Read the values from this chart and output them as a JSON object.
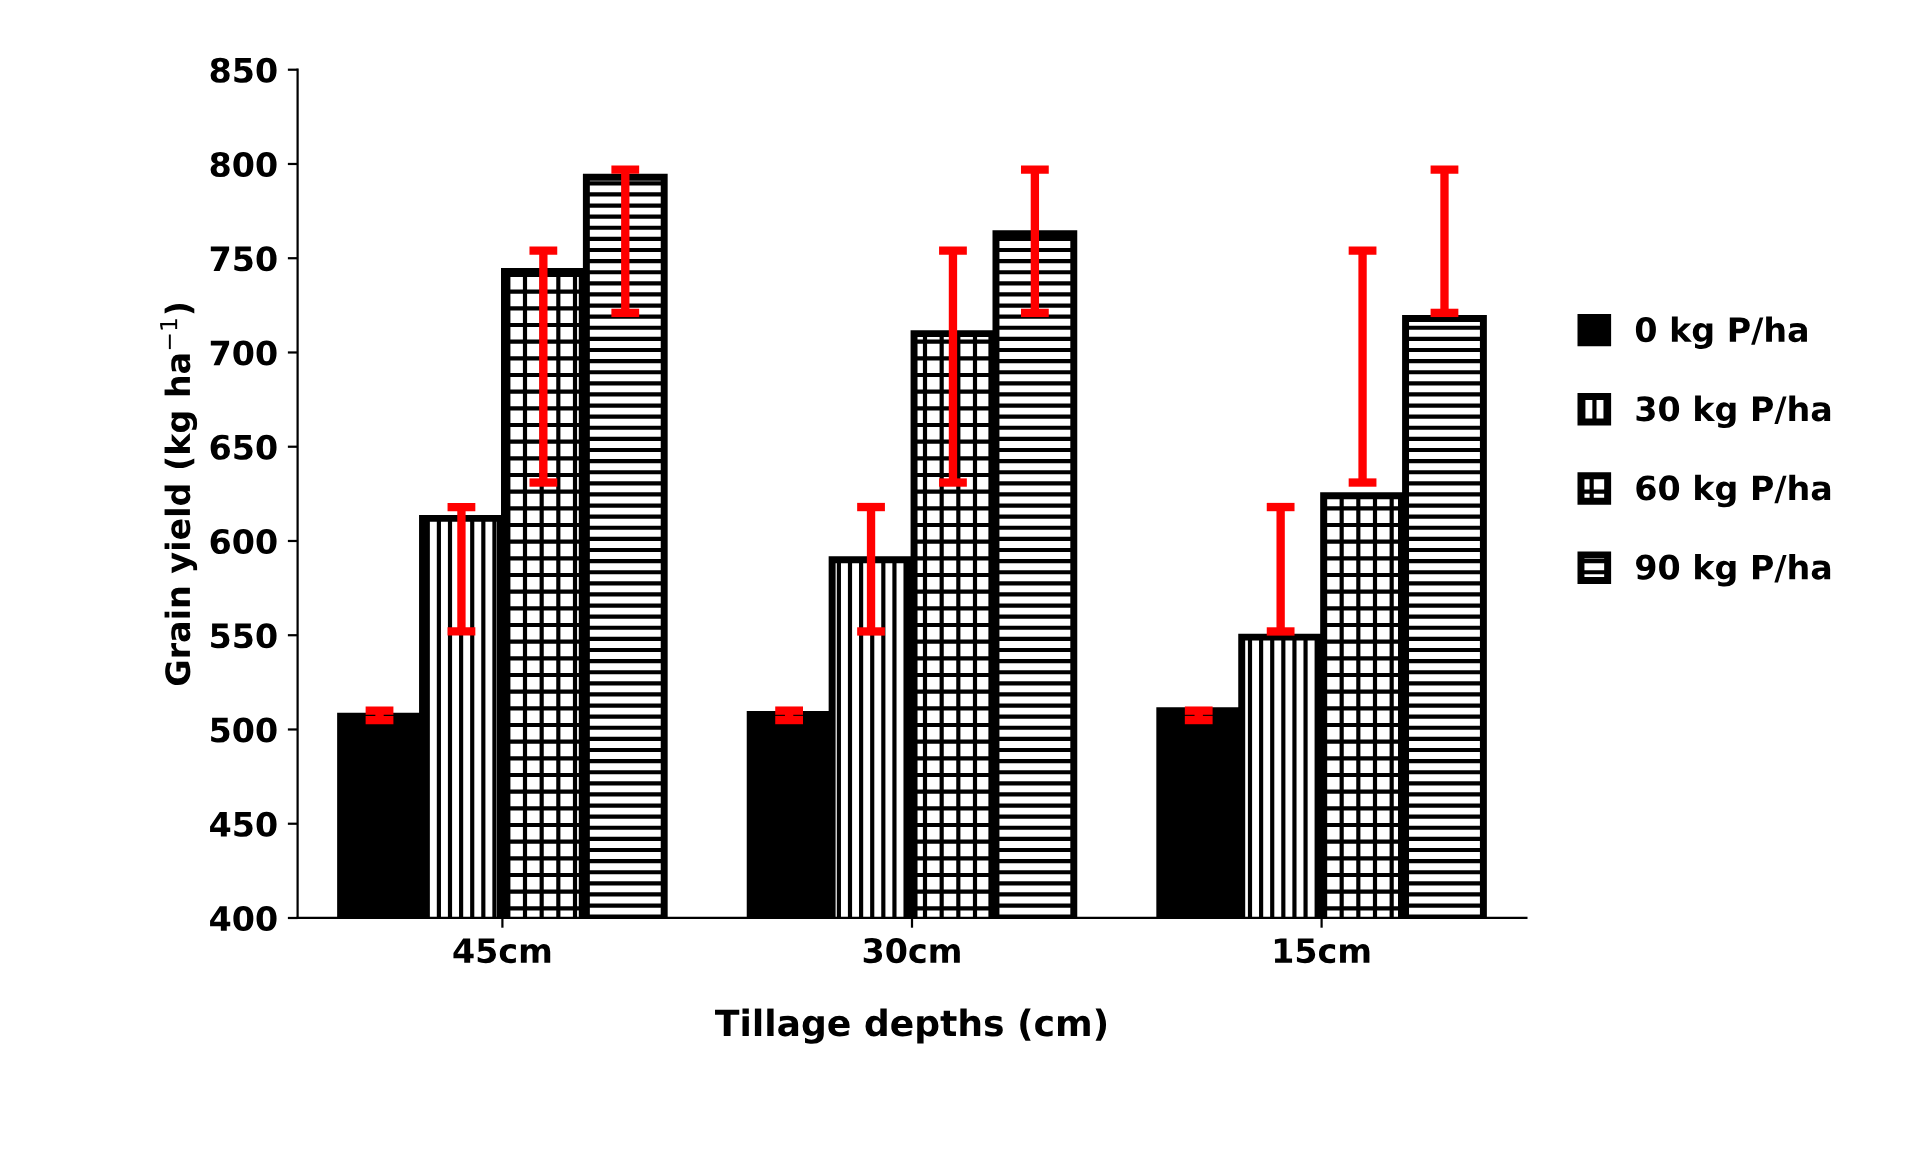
{
  "chart_data": {
    "type": "bar",
    "xlabel": "Tillage depths (cm)",
    "ylabel": "Grain yield (kg ha$^{−1}$)",
    "categories": [
      "45cm",
      "30cm",
      "15cm"
    ],
    "series": [
      {
        "name": "0 kg P/ha",
        "color": "#000000",
        "values": [
          507,
          508,
          510
        ],
        "errors": [
          [
            505,
            510
          ],
          [
            505,
            510
          ],
          [
            505,
            510
          ]
        ]
      },
      {
        "name": "30 kg P/ha",
        "color": "#000000",
        "values": [
          612,
          590,
          549
        ],
        "errors": [
          [
            552,
            618
          ],
          [
            552,
            618
          ],
          [
            552,
            618
          ]
        ]
      },
      {
        "name": "60 kg P/ha",
        "color": "#000000",
        "values": [
          743,
          710,
          624
        ],
        "errors": [
          [
            631,
            754
          ],
          [
            631,
            754
          ],
          [
            631,
            754
          ]
        ]
      },
      {
        "name": "90 kg P/ha",
        "color": "#000000",
        "values": [
          793,
          763,
          718
        ],
        "errors": [
          [
            721,
            797
          ],
          [
            721,
            797
          ],
          [
            721,
            797
          ]
        ]
      }
    ],
    "ylim": [
      400,
      850
    ],
    "yticks": [
      400,
      450,
      500,
      550,
      600,
      650,
      700,
      750,
      800,
      850
    ],
    "grid": false,
    "legend": "right"
  }
}
